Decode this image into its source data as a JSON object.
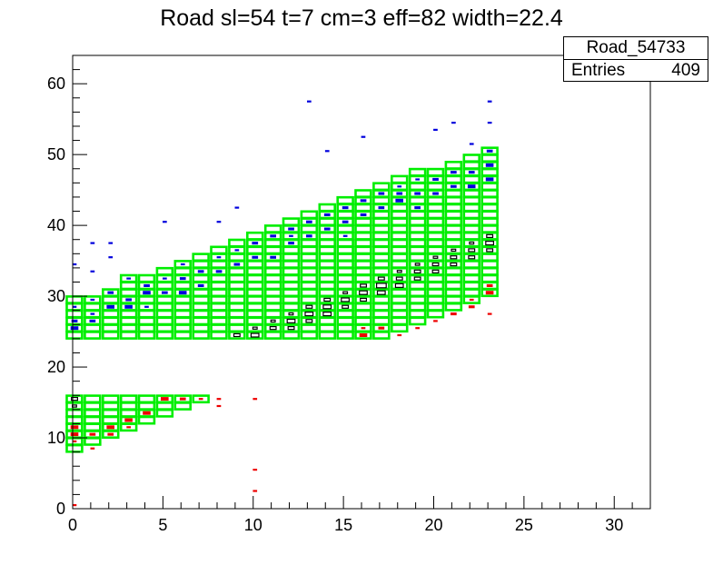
{
  "title": "Road sl=54 t=7 cm=3 eff=82 width=22.4",
  "stats": {
    "name": "Road_54733",
    "entries_label": "Entries",
    "entries_value": "409"
  },
  "colors": {
    "road": "#00ee00",
    "on_road": "#000000",
    "above": "#0000dd",
    "below": "#ee0000"
  },
  "chart_data": {
    "type": "heatmap",
    "title": "Road sl=54 t=7 cm=3 eff=82 width=22.4",
    "xlabel": "",
    "ylabel": "",
    "xlim": [
      0,
      32
    ],
    "ylim": [
      0,
      64
    ],
    "x_ticks": [
      0,
      5,
      10,
      15,
      20,
      25,
      30
    ],
    "y_ticks": [
      0,
      10,
      20,
      30,
      40,
      50,
      60
    ],
    "grid": false,
    "legend": "top-right stats box",
    "road_upper": [
      {
        "x": 0,
        "ylow": 24,
        "yhigh": 30
      },
      {
        "x": 1,
        "ylow": 24,
        "yhigh": 30
      },
      {
        "x": 2,
        "ylow": 24,
        "yhigh": 31
      },
      {
        "x": 3,
        "ylow": 24,
        "yhigh": 33
      },
      {
        "x": 4,
        "ylow": 24,
        "yhigh": 33
      },
      {
        "x": 5,
        "ylow": 24,
        "yhigh": 34
      },
      {
        "x": 6,
        "ylow": 24,
        "yhigh": 35
      },
      {
        "x": 7,
        "ylow": 24,
        "yhigh": 36
      },
      {
        "x": 8,
        "ylow": 24,
        "yhigh": 37
      },
      {
        "x": 9,
        "ylow": 24,
        "yhigh": 38
      },
      {
        "x": 10,
        "ylow": 24,
        "yhigh": 39
      },
      {
        "x": 11,
        "ylow": 24,
        "yhigh": 40
      },
      {
        "x": 12,
        "ylow": 24,
        "yhigh": 41
      },
      {
        "x": 13,
        "ylow": 24,
        "yhigh": 42
      },
      {
        "x": 14,
        "ylow": 24,
        "yhigh": 43
      },
      {
        "x": 15,
        "ylow": 24,
        "yhigh": 44
      },
      {
        "x": 16,
        "ylow": 24,
        "yhigh": 45
      },
      {
        "x": 17,
        "ylow": 24,
        "yhigh": 46
      },
      {
        "x": 18,
        "ylow": 25,
        "yhigh": 47
      },
      {
        "x": 19,
        "ylow": 26,
        "yhigh": 48
      },
      {
        "x": 20,
        "ylow": 27,
        "yhigh": 48
      },
      {
        "x": 21,
        "ylow": 28,
        "yhigh": 49
      },
      {
        "x": 22,
        "ylow": 29,
        "yhigh": 50
      },
      {
        "x": 23,
        "ylow": 30,
        "yhigh": 51
      }
    ],
    "road_lower": [
      {
        "x": 0,
        "ylow": 8,
        "yhigh": 16
      },
      {
        "x": 1,
        "ylow": 9,
        "yhigh": 16
      },
      {
        "x": 2,
        "ylow": 10,
        "yhigh": 16
      },
      {
        "x": 3,
        "ylow": 11,
        "yhigh": 16
      },
      {
        "x": 4,
        "ylow": 12,
        "yhigh": 16
      },
      {
        "x": 5,
        "ylow": 13,
        "yhigh": 16
      },
      {
        "x": 6,
        "ylow": 14,
        "yhigh": 16
      },
      {
        "x": 7,
        "ylow": 15,
        "yhigh": 16
      }
    ],
    "hits_on_road": [
      [
        0,
        15,
        2
      ],
      [
        0,
        14,
        1
      ],
      [
        9,
        24,
        2
      ],
      [
        10,
        24,
        3
      ],
      [
        10,
        25,
        1
      ],
      [
        11,
        25,
        2
      ],
      [
        11,
        26,
        1
      ],
      [
        12,
        25,
        2
      ],
      [
        12,
        26,
        3
      ],
      [
        12,
        27,
        1
      ],
      [
        13,
        26,
        2
      ],
      [
        13,
        27,
        3
      ],
      [
        13,
        28,
        2
      ],
      [
        14,
        27,
        3
      ],
      [
        14,
        28,
        3
      ],
      [
        14,
        29,
        2
      ],
      [
        15,
        28,
        2
      ],
      [
        15,
        29,
        3
      ],
      [
        15,
        30,
        1
      ],
      [
        16,
        29,
        2
      ],
      [
        16,
        30,
        3
      ],
      [
        16,
        31,
        2
      ],
      [
        17,
        30,
        3
      ],
      [
        17,
        31,
        4
      ],
      [
        17,
        32,
        2
      ],
      [
        18,
        31,
        3
      ],
      [
        18,
        32,
        2
      ],
      [
        18,
        33,
        1
      ],
      [
        19,
        32,
        2
      ],
      [
        19,
        33,
        2
      ],
      [
        19,
        34,
        1
      ],
      [
        20,
        33,
        2
      ],
      [
        20,
        34,
        2
      ],
      [
        20,
        35,
        1
      ],
      [
        21,
        34,
        2
      ],
      [
        21,
        35,
        2
      ],
      [
        21,
        36,
        1
      ],
      [
        22,
        35,
        2
      ],
      [
        22,
        36,
        2
      ],
      [
        22,
        37,
        1
      ],
      [
        23,
        36,
        2
      ],
      [
        23,
        37,
        3
      ],
      [
        23,
        38,
        2
      ]
    ],
    "hits_above": [
      [
        0,
        25,
        3
      ],
      [
        0,
        26,
        2
      ],
      [
        0,
        28,
        1
      ],
      [
        0,
        34,
        1
      ],
      [
        1,
        26,
        2
      ],
      [
        1,
        27,
        1
      ],
      [
        1,
        29,
        1
      ],
      [
        1,
        33,
        1
      ],
      [
        1,
        37,
        1
      ],
      [
        2,
        28,
        3
      ],
      [
        2,
        30,
        2
      ],
      [
        2,
        35,
        1
      ],
      [
        2,
        37,
        1
      ],
      [
        3,
        28,
        3
      ],
      [
        3,
        29,
        2
      ],
      [
        3,
        32,
        1
      ],
      [
        4,
        30,
        3
      ],
      [
        4,
        31,
        2
      ],
      [
        4,
        28,
        1
      ],
      [
        5,
        30,
        2
      ],
      [
        5,
        32,
        1
      ],
      [
        5,
        40,
        1
      ],
      [
        6,
        30,
        3
      ],
      [
        6,
        32,
        2
      ],
      [
        6,
        34,
        1
      ],
      [
        7,
        31,
        2
      ],
      [
        7,
        33,
        2
      ],
      [
        8,
        33,
        2
      ],
      [
        8,
        35,
        1
      ],
      [
        8,
        40,
        1
      ],
      [
        9,
        34,
        2
      ],
      [
        9,
        36,
        1
      ],
      [
        9,
        42,
        1
      ],
      [
        10,
        35,
        2
      ],
      [
        10,
        37,
        2
      ],
      [
        11,
        35,
        2
      ],
      [
        11,
        38,
        2
      ],
      [
        12,
        37,
        2
      ],
      [
        12,
        39,
        2
      ],
      [
        12,
        38,
        1
      ],
      [
        13,
        38,
        2
      ],
      [
        13,
        40,
        2
      ],
      [
        13,
        57,
        1
      ],
      [
        14,
        39,
        2
      ],
      [
        14,
        41,
        2
      ],
      [
        14,
        50,
        1
      ],
      [
        15,
        40,
        2
      ],
      [
        15,
        42,
        2
      ],
      [
        15,
        38,
        1
      ],
      [
        16,
        41,
        2
      ],
      [
        16,
        43,
        2
      ],
      [
        16,
        52,
        1
      ],
      [
        17,
        42,
        2
      ],
      [
        17,
        44,
        2
      ],
      [
        18,
        43,
        3
      ],
      [
        18,
        44,
        2
      ],
      [
        18,
        45,
        1
      ],
      [
        19,
        42,
        2
      ],
      [
        19,
        44,
        2
      ],
      [
        19,
        46,
        1
      ],
      [
        20,
        44,
        2
      ],
      [
        20,
        46,
        2
      ],
      [
        20,
        53,
        1
      ],
      [
        21,
        45,
        2
      ],
      [
        21,
        47,
        2
      ],
      [
        21,
        54,
        1
      ],
      [
        22,
        45,
        3
      ],
      [
        22,
        47,
        2
      ],
      [
        22,
        51,
        1
      ],
      [
        23,
        46,
        3
      ],
      [
        23,
        48,
        3
      ],
      [
        23,
        50,
        2
      ],
      [
        23,
        54,
        1
      ],
      [
        23,
        57,
        1
      ]
    ],
    "hits_below": [
      [
        0,
        11,
        3
      ],
      [
        0,
        10,
        3
      ],
      [
        0,
        9,
        1
      ],
      [
        0,
        0,
        1
      ],
      [
        1,
        10,
        2
      ],
      [
        1,
        8,
        1
      ],
      [
        2,
        11,
        3
      ],
      [
        2,
        10,
        2
      ],
      [
        3,
        12,
        3
      ],
      [
        3,
        11,
        1
      ],
      [
        4,
        13,
        3
      ],
      [
        5,
        15,
        3
      ],
      [
        6,
        15,
        2
      ],
      [
        7,
        15,
        1
      ],
      [
        8,
        14,
        1
      ],
      [
        8,
        15,
        1
      ],
      [
        10,
        15,
        1
      ],
      [
        10,
        5,
        1
      ],
      [
        10,
        2,
        1
      ],
      [
        16,
        24,
        3
      ],
      [
        16,
        25,
        1
      ],
      [
        17,
        25,
        2
      ],
      [
        18,
        24,
        1
      ],
      [
        19,
        25,
        1
      ],
      [
        20,
        26,
        1
      ],
      [
        21,
        27,
        2
      ],
      [
        22,
        28,
        2
      ],
      [
        22,
        29,
        1
      ],
      [
        23,
        30,
        3
      ],
      [
        23,
        31,
        2
      ],
      [
        23,
        27,
        1
      ]
    ]
  }
}
